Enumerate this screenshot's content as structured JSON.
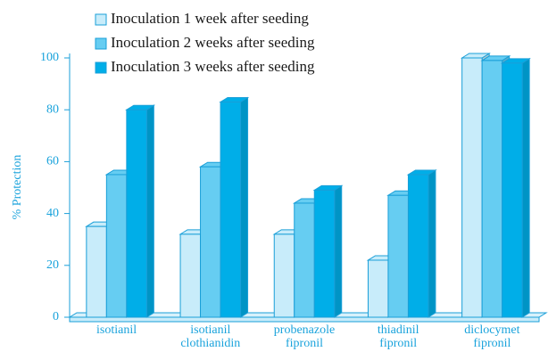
{
  "chart_data": {
    "type": "bar3d",
    "ylabel": "% Protection",
    "categories": [
      [
        "isotianil"
      ],
      [
        "isotianil",
        "clothianidin"
      ],
      [
        "probenazole",
        "fipronil"
      ],
      [
        "thiadinil",
        "fipronil"
      ],
      [
        "diclocymet",
        "fipronil"
      ]
    ],
    "series": [
      {
        "name": "Inoculation 1 week after seeding",
        "color": "#c8ecfa",
        "values": [
          35,
          32,
          32,
          22,
          100
        ]
      },
      {
        "name": "Inoculation 2 weeks after seeding",
        "color": "#66cdf2",
        "values": [
          55,
          58,
          44,
          47,
          99
        ]
      },
      {
        "name": "Inoculation 3 weeks after seeding",
        "color": "#00aee8",
        "values": [
          80,
          83,
          49,
          55,
          98
        ]
      }
    ],
    "ylim": [
      0,
      100
    ],
    "yticks": [
      0,
      20,
      40,
      60,
      80,
      100
    ]
  }
}
